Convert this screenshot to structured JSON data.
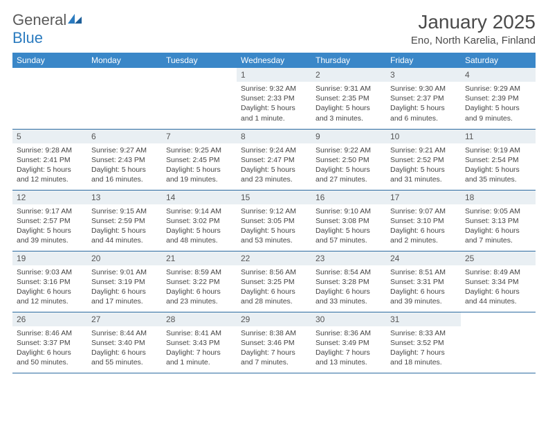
{
  "logo": {
    "text_general": "General",
    "text_blue": "Blue",
    "mark_color": "#2b7bbf"
  },
  "title": "January 2025",
  "location": "Eno, North Karelia, Finland",
  "colors": {
    "header_bg": "#3a87c8",
    "header_text": "#ffffff",
    "row_border": "#2b6aa0",
    "daynum_bg": "#e9eff3",
    "body_text": "#444444"
  },
  "typography": {
    "title_fontsize": 28,
    "location_fontsize": 15,
    "weekday_fontsize": 12,
    "daynum_fontsize": 12,
    "info_fontsize": 10.5
  },
  "weekdays": [
    "Sunday",
    "Monday",
    "Tuesday",
    "Wednesday",
    "Thursday",
    "Friday",
    "Saturday"
  ],
  "weeks": [
    [
      null,
      null,
      null,
      {
        "n": "1",
        "sunrise": "9:32 AM",
        "sunset": "2:33 PM",
        "daylight": "5 hours and 1 minute."
      },
      {
        "n": "2",
        "sunrise": "9:31 AM",
        "sunset": "2:35 PM",
        "daylight": "5 hours and 3 minutes."
      },
      {
        "n": "3",
        "sunrise": "9:30 AM",
        "sunset": "2:37 PM",
        "daylight": "5 hours and 6 minutes."
      },
      {
        "n": "4",
        "sunrise": "9:29 AM",
        "sunset": "2:39 PM",
        "daylight": "5 hours and 9 minutes."
      }
    ],
    [
      {
        "n": "5",
        "sunrise": "9:28 AM",
        "sunset": "2:41 PM",
        "daylight": "5 hours and 12 minutes."
      },
      {
        "n": "6",
        "sunrise": "9:27 AM",
        "sunset": "2:43 PM",
        "daylight": "5 hours and 16 minutes."
      },
      {
        "n": "7",
        "sunrise": "9:25 AM",
        "sunset": "2:45 PM",
        "daylight": "5 hours and 19 minutes."
      },
      {
        "n": "8",
        "sunrise": "9:24 AM",
        "sunset": "2:47 PM",
        "daylight": "5 hours and 23 minutes."
      },
      {
        "n": "9",
        "sunrise": "9:22 AM",
        "sunset": "2:50 PM",
        "daylight": "5 hours and 27 minutes."
      },
      {
        "n": "10",
        "sunrise": "9:21 AM",
        "sunset": "2:52 PM",
        "daylight": "5 hours and 31 minutes."
      },
      {
        "n": "11",
        "sunrise": "9:19 AM",
        "sunset": "2:54 PM",
        "daylight": "5 hours and 35 minutes."
      }
    ],
    [
      {
        "n": "12",
        "sunrise": "9:17 AM",
        "sunset": "2:57 PM",
        "daylight": "5 hours and 39 minutes."
      },
      {
        "n": "13",
        "sunrise": "9:15 AM",
        "sunset": "2:59 PM",
        "daylight": "5 hours and 44 minutes."
      },
      {
        "n": "14",
        "sunrise": "9:14 AM",
        "sunset": "3:02 PM",
        "daylight": "5 hours and 48 minutes."
      },
      {
        "n": "15",
        "sunrise": "9:12 AM",
        "sunset": "3:05 PM",
        "daylight": "5 hours and 53 minutes."
      },
      {
        "n": "16",
        "sunrise": "9:10 AM",
        "sunset": "3:08 PM",
        "daylight": "5 hours and 57 minutes."
      },
      {
        "n": "17",
        "sunrise": "9:07 AM",
        "sunset": "3:10 PM",
        "daylight": "6 hours and 2 minutes."
      },
      {
        "n": "18",
        "sunrise": "9:05 AM",
        "sunset": "3:13 PM",
        "daylight": "6 hours and 7 minutes."
      }
    ],
    [
      {
        "n": "19",
        "sunrise": "9:03 AM",
        "sunset": "3:16 PM",
        "daylight": "6 hours and 12 minutes."
      },
      {
        "n": "20",
        "sunrise": "9:01 AM",
        "sunset": "3:19 PM",
        "daylight": "6 hours and 17 minutes."
      },
      {
        "n": "21",
        "sunrise": "8:59 AM",
        "sunset": "3:22 PM",
        "daylight": "6 hours and 23 minutes."
      },
      {
        "n": "22",
        "sunrise": "8:56 AM",
        "sunset": "3:25 PM",
        "daylight": "6 hours and 28 minutes."
      },
      {
        "n": "23",
        "sunrise": "8:54 AM",
        "sunset": "3:28 PM",
        "daylight": "6 hours and 33 minutes."
      },
      {
        "n": "24",
        "sunrise": "8:51 AM",
        "sunset": "3:31 PM",
        "daylight": "6 hours and 39 minutes."
      },
      {
        "n": "25",
        "sunrise": "8:49 AM",
        "sunset": "3:34 PM",
        "daylight": "6 hours and 44 minutes."
      }
    ],
    [
      {
        "n": "26",
        "sunrise": "8:46 AM",
        "sunset": "3:37 PM",
        "daylight": "6 hours and 50 minutes."
      },
      {
        "n": "27",
        "sunrise": "8:44 AM",
        "sunset": "3:40 PM",
        "daylight": "6 hours and 55 minutes."
      },
      {
        "n": "28",
        "sunrise": "8:41 AM",
        "sunset": "3:43 PM",
        "daylight": "7 hours and 1 minute."
      },
      {
        "n": "29",
        "sunrise": "8:38 AM",
        "sunset": "3:46 PM",
        "daylight": "7 hours and 7 minutes."
      },
      {
        "n": "30",
        "sunrise": "8:36 AM",
        "sunset": "3:49 PM",
        "daylight": "7 hours and 13 minutes."
      },
      {
        "n": "31",
        "sunrise": "8:33 AM",
        "sunset": "3:52 PM",
        "daylight": "7 hours and 18 minutes."
      },
      null
    ]
  ],
  "labels": {
    "sunrise": "Sunrise:",
    "sunset": "Sunset:",
    "daylight": "Daylight:"
  }
}
